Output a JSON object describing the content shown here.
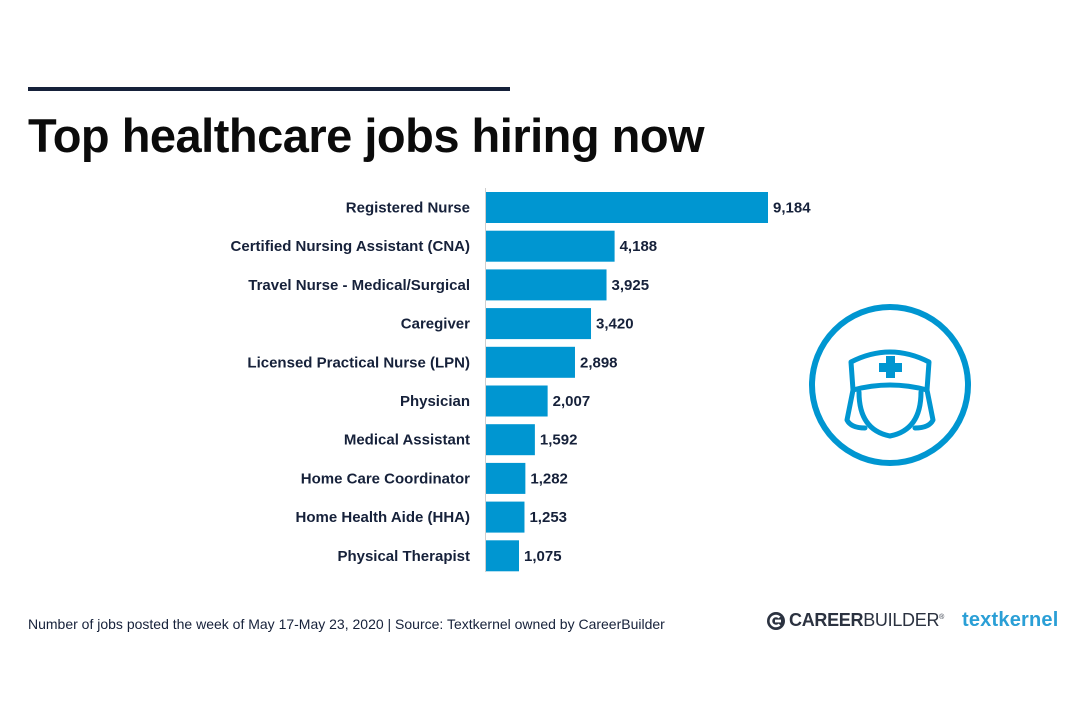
{
  "header": {
    "title": "Top healthcare jobs hiring now"
  },
  "chart_data": {
    "type": "bar",
    "orientation": "horizontal",
    "title": "Top healthcare jobs hiring now",
    "categories": [
      "Registered Nurse",
      "Certified Nursing Assistant (CNA)",
      "Travel Nurse - Medical/Surgical",
      "Caregiver",
      "Licensed Practical Nurse (LPN)",
      "Physician",
      "Medical Assistant",
      "Home Care Coordinator",
      "Home Health Aide (HHA)",
      "Physical Therapist"
    ],
    "values": [
      9184,
      4188,
      3925,
      3420,
      2898,
      2007,
      1592,
      1282,
      1253,
      1075
    ],
    "value_labels": [
      "9,184",
      "4,188",
      "3,925",
      "3,420",
      "2,898",
      "2,007",
      "1,592",
      "1,282",
      "1,253",
      "1,075"
    ],
    "xlabel": "",
    "ylabel": "",
    "xlim": [
      0,
      9184
    ],
    "bar_color": "#0096d1"
  },
  "footer": {
    "note": "Number of jobs posted the week of May 17-May 23, 2020  |  Source: Textkernel owned by CareerBuilder"
  },
  "logos": {
    "careerbuilder_bold": "CAREER",
    "careerbuilder_light": "BUILDER",
    "careerbuilder_reg": "®",
    "textkernel": "textkernel"
  },
  "colors": {
    "accent": "#0096d1",
    "text": "#16213a",
    "textkernel": "#2a9fd6"
  }
}
